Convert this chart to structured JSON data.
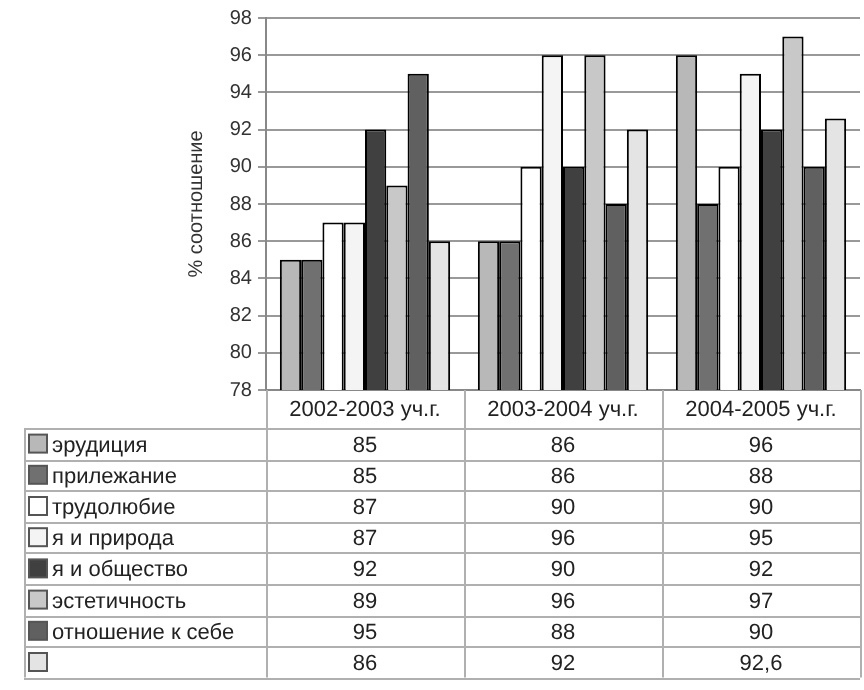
{
  "chart_data": {
    "type": "bar",
    "ylabel": "% соотношение",
    "categories": [
      "2002-2003 уч.г.",
      "2003-2004 уч.г.",
      "2004-2005 уч.г."
    ],
    "series": [
      {
        "name": "эрудиция",
        "color": "#b8b8b8",
        "values": [
          85,
          86,
          96
        ],
        "value_labels": [
          "85",
          "86",
          "96"
        ]
      },
      {
        "name": "прилежание",
        "color": "#707070",
        "values": [
          85,
          86,
          88
        ],
        "value_labels": [
          "85",
          "86",
          "88"
        ]
      },
      {
        "name": "трудолюбие",
        "color": "#ffffff",
        "values": [
          87,
          90,
          90
        ],
        "value_labels": [
          "87",
          "90",
          "90"
        ]
      },
      {
        "name": "я и природа",
        "color": "#f4f4f4",
        "values": [
          87,
          96,
          95
        ],
        "value_labels": [
          "87",
          "96",
          "95"
        ]
      },
      {
        "name": "я и общество",
        "color": "#404040",
        "values": [
          92,
          90,
          92
        ],
        "value_labels": [
          "92",
          "90",
          "92"
        ]
      },
      {
        "name": "эстетичность",
        "color": "#c8c8c8",
        "values": [
          89,
          96,
          97
        ],
        "value_labels": [
          "89",
          "96",
          "97"
        ]
      },
      {
        "name": "отношение к себе",
        "color": "#606060",
        "values": [
          95,
          88,
          90
        ],
        "value_labels": [
          "95",
          "88",
          "90"
        ]
      },
      {
        "color": "#e4e4e4",
        "values": [
          86,
          92,
          92.6
        ],
        "value_labels": [
          "86",
          "92",
          "92,6"
        ]
      }
    ],
    "ylim": [
      78,
      98
    ],
    "yticks": [
      78,
      80,
      82,
      84,
      86,
      88,
      90,
      92,
      94,
      96,
      98
    ],
    "grid": "y",
    "legend": "bottom"
  }
}
